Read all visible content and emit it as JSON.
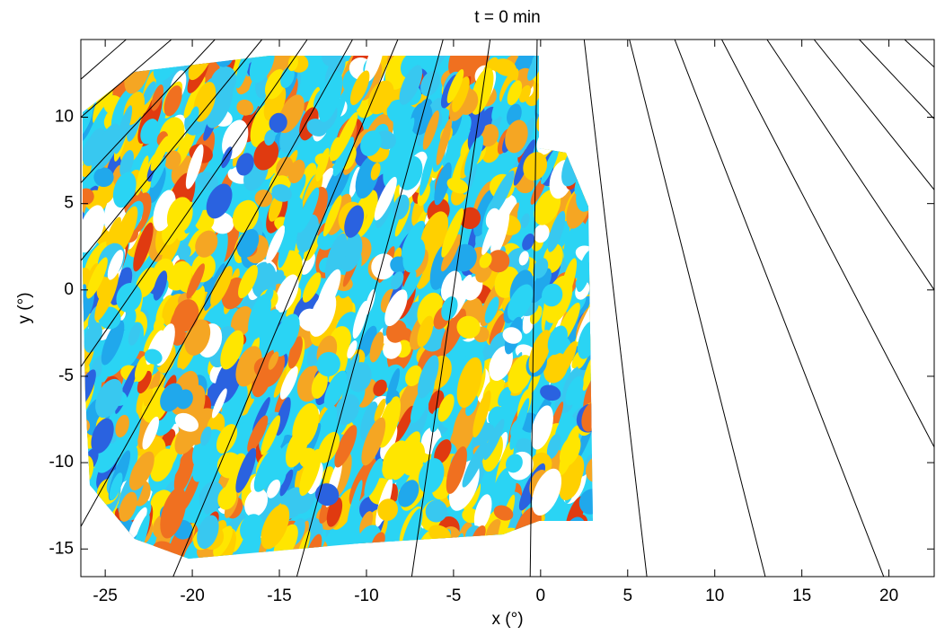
{
  "chart_data": {
    "type": "field-map",
    "title": "t = 0 min",
    "x_label": "x (°)",
    "y_label": "y (°)",
    "xlim": [
      -26.4,
      22.6
    ],
    "ylim": [
      -16.6,
      14.5
    ],
    "xticks": [
      -25,
      -20,
      -15,
      -10,
      -5,
      0,
      5,
      10,
      15,
      20
    ],
    "yticks": [
      -15,
      -10,
      -5,
      0,
      5,
      10
    ],
    "line_color": "#000000",
    "lines": [
      {
        "x": [
          -23.8,
          -26.4
        ],
        "y": [
          14.5,
          12.2
        ]
      },
      {
        "x": [
          -21.2,
          -26.4
        ],
        "y": [
          14.5,
          10.0
        ]
      },
      {
        "x": [
          -18.7,
          -26.4
        ],
        "y": [
          14.5,
          6.2
        ]
      },
      {
        "x": [
          -16.0,
          -26.4
        ],
        "y": [
          14.5,
          1.7
        ]
      },
      {
        "x": [
          -13.4,
          -26.4
        ],
        "y": [
          14.5,
          -4.45
        ]
      },
      {
        "x": [
          -10.8,
          -26.4
        ],
        "y": [
          14.5,
          -13.7
        ]
      },
      {
        "x": [
          -8.2,
          -21.1
        ],
        "y": [
          14.5,
          -16.6
        ]
      },
      {
        "x": [
          -5.6,
          -14.0
        ],
        "y": [
          14.5,
          -16.6
        ]
      },
      {
        "x": [
          -2.9,
          -7.4
        ],
        "y": [
          14.5,
          -16.6
        ]
      },
      {
        "x": [
          -0.2,
          -0.6
        ],
        "y": [
          14.5,
          -16.6
        ]
      },
      {
        "x": [
          2.5,
          6.1
        ],
        "y": [
          14.5,
          -16.6
        ]
      },
      {
        "x": [
          5.1,
          12.9
        ],
        "y": [
          14.5,
          -16.6
        ]
      },
      {
        "x": [
          7.7,
          19.7
        ],
        "y": [
          14.5,
          -16.6
        ]
      },
      {
        "x": [
          10.4,
          22.6
        ],
        "y": [
          14.5,
          -9.1
        ]
      },
      {
        "x": [
          13.0,
          22.6
        ],
        "y": [
          14.5,
          0.0
        ]
      },
      {
        "x": [
          15.7,
          22.6
        ],
        "y": [
          14.5,
          5.8
        ]
      },
      {
        "x": [
          18.3,
          22.6
        ],
        "y": [
          14.5,
          9.9
        ]
      },
      {
        "x": [
          20.9,
          22.6
        ],
        "y": [
          14.5,
          12.9
        ]
      }
    ]
  }
}
